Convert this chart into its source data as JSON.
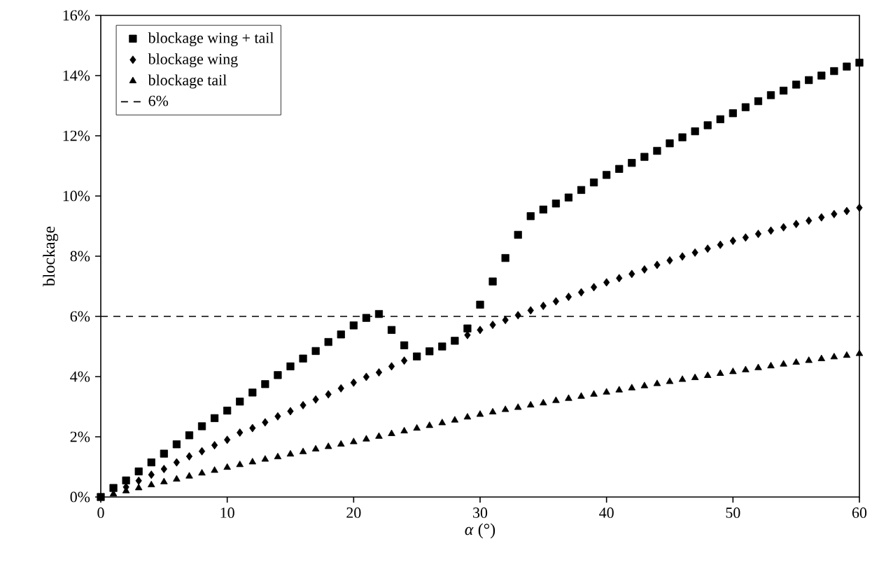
{
  "chart_data": {
    "type": "scatter",
    "xlabel": "*α* (°)",
    "ylabel": "blockage",
    "x": [
      0,
      1,
      2,
      3,
      4,
      5,
      6,
      7,
      8,
      9,
      10,
      11,
      12,
      13,
      14,
      15,
      16,
      17,
      18,
      19,
      20,
      21,
      22,
      23,
      24,
      25,
      26,
      27,
      28,
      29,
      30,
      31,
      32,
      33,
      34,
      35,
      36,
      37,
      38,
      39,
      40,
      41,
      42,
      43,
      44,
      45,
      46,
      47,
      48,
      49,
      50,
      51,
      52,
      53,
      54,
      55,
      56,
      57,
      58,
      59,
      60
    ],
    "series": [
      {
        "name": "blockage wing + tail",
        "color": "#000000",
        "marker": "square",
        "values": [
          0,
          0.3,
          0.55,
          0.85,
          1.15,
          1.44,
          1.75,
          2.05,
          2.35,
          2.62,
          2.87,
          3.17,
          3.47,
          3.75,
          4.05,
          4.34,
          4.6,
          4.85,
          5.15,
          5.4,
          5.7,
          5.95,
          6.08,
          5.55,
          5.04,
          4.67,
          4.84,
          5.0,
          5.19,
          5.6,
          6.39,
          7.16,
          7.94,
          8.71,
          9.33,
          9.55,
          9.75,
          9.95,
          10.2,
          10.45,
          10.7,
          10.9,
          11.1,
          11.3,
          11.5,
          11.75,
          11.95,
          12.15,
          12.35,
          12.55,
          12.75,
          12.95,
          13.15,
          13.35,
          13.5,
          13.7,
          13.85,
          14.0,
          14.15,
          14.3,
          14.43
        ]
      },
      {
        "name": "blockage wing",
        "color": "#000000",
        "marker": "diamond",
        "values": [
          null,
          null,
          0.33,
          0.54,
          0.74,
          0.93,
          1.15,
          1.35,
          1.52,
          1.72,
          1.9,
          2.14,
          2.29,
          2.48,
          2.68,
          2.85,
          3.05,
          3.24,
          3.41,
          3.61,
          3.8,
          3.99,
          4.14,
          4.34,
          4.53,
          null,
          null,
          null,
          null,
          5.38,
          5.55,
          5.72,
          5.88,
          6.04,
          6.2,
          6.35,
          6.5,
          6.65,
          6.8,
          6.97,
          7.13,
          7.27,
          7.41,
          7.56,
          7.71,
          7.86,
          7.99,
          8.12,
          8.25,
          8.38,
          8.51,
          8.62,
          8.74,
          8.85,
          8.96,
          9.07,
          9.18,
          9.29,
          9.4,
          9.5,
          9.61
        ]
      },
      {
        "name": "blockage tail",
        "color": "#000000",
        "marker": "triangle",
        "values": [
          null,
          0.1,
          0.2,
          0.3,
          0.4,
          0.5,
          0.59,
          0.69,
          0.79,
          0.88,
          0.98,
          1.07,
          1.16,
          1.25,
          1.33,
          1.42,
          1.5,
          1.59,
          1.67,
          1.75,
          1.83,
          1.92,
          2.01,
          2.1,
          2.19,
          2.28,
          2.37,
          2.46,
          2.55,
          2.65,
          2.74,
          2.82,
          2.9,
          2.97,
          3.05,
          3.12,
          3.2,
          3.27,
          3.34,
          3.41,
          3.48,
          3.55,
          3.62,
          3.69,
          3.76,
          3.83,
          3.9,
          3.96,
          4.03,
          4.1,
          4.16,
          4.22,
          4.29,
          4.35,
          4.41,
          4.47,
          4.53,
          4.59,
          4.65,
          4.7,
          4.76
        ]
      }
    ],
    "ref_lines": [
      {
        "axis": "y",
        "value": 6,
        "label": "6%",
        "color": "#000000",
        "line_style": "dashed"
      }
    ],
    "xlim": [
      0,
      60
    ],
    "xticks": [
      0,
      10,
      20,
      30,
      40,
      50,
      60
    ],
    "ylim": [
      0,
      16
    ],
    "yticks": [
      {
        "value": 0,
        "label": "0%"
      },
      {
        "value": 2,
        "label": "2%"
      },
      {
        "value": 4,
        "label": "4%"
      },
      {
        "value": 6,
        "label": "6%"
      },
      {
        "value": 8,
        "label": "8%"
      },
      {
        "value": 10,
        "label": "10%"
      },
      {
        "value": 12,
        "label": "12%"
      },
      {
        "value": 14,
        "label": "14%"
      },
      {
        "value": 16,
        "label": "16%"
      }
    ],
    "grid": false,
    "legend": "top left"
  }
}
